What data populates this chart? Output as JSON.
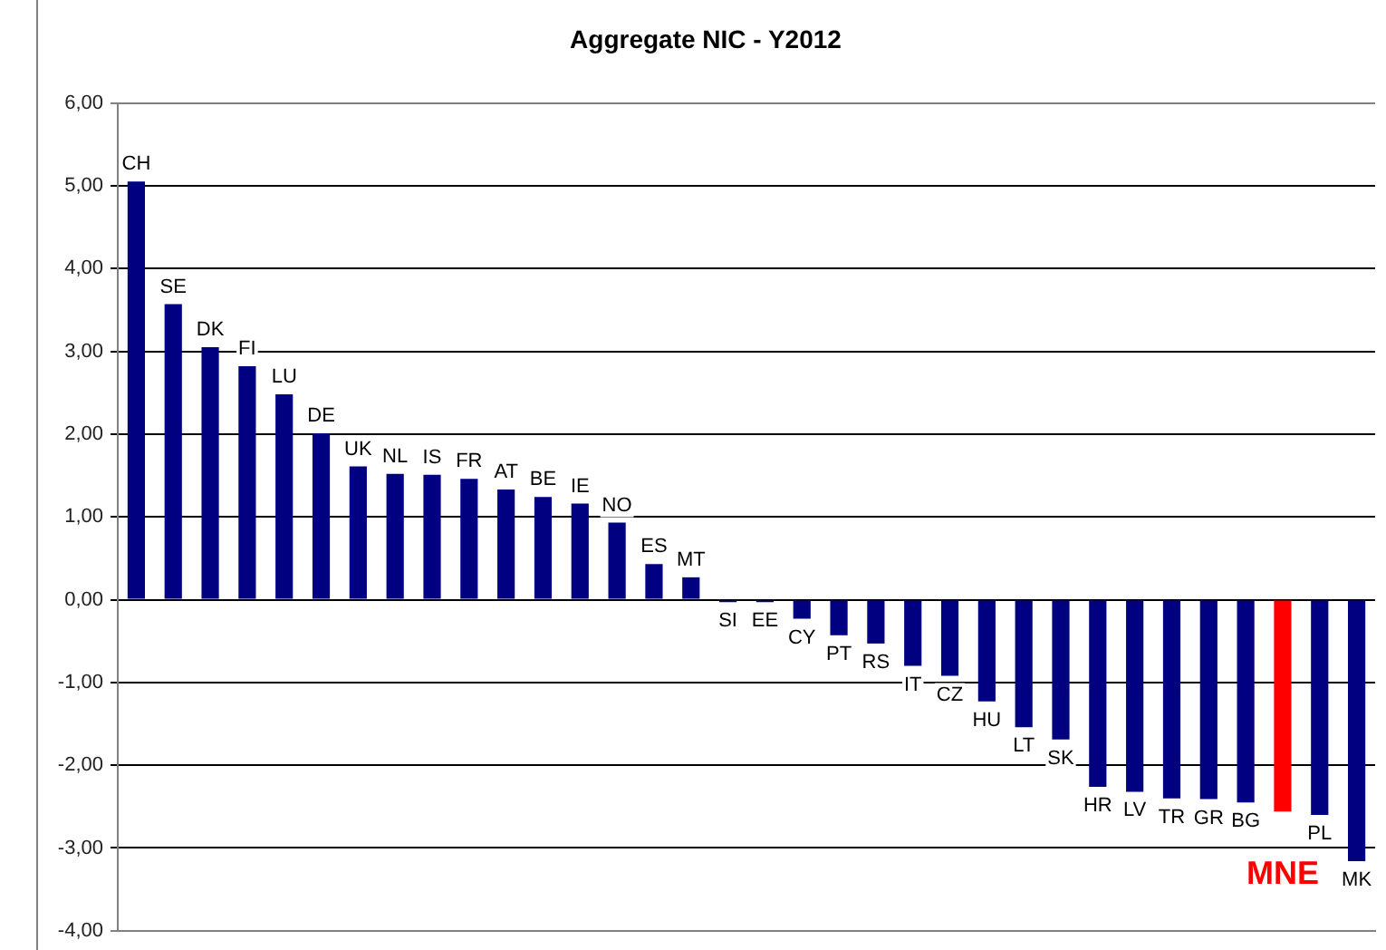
{
  "chart_data": {
    "type": "bar",
    "title": "Aggregate NIC - Y2012",
    "categories": [
      "CH",
      "SE",
      "DK",
      "FI",
      "LU",
      "DE",
      "UK",
      "NL",
      "IS",
      "FR",
      "AT",
      "BE",
      "IE",
      "NO",
      "ES",
      "MT",
      "SI",
      "EE",
      "CY",
      "PT",
      "RS",
      "IT",
      "CZ",
      "HU",
      "LT",
      "SK",
      "HR",
      "LV",
      "TR",
      "GR",
      "BG",
      "MNE",
      "PL",
      "MK"
    ],
    "values": [
      5.05,
      3.57,
      3.05,
      2.82,
      2.48,
      2.01,
      1.61,
      1.52,
      1.51,
      1.46,
      1.33,
      1.24,
      1.16,
      0.93,
      0.43,
      0.27,
      -0.03,
      -0.03,
      -0.23,
      -0.43,
      -0.53,
      -0.8,
      -0.92,
      -1.23,
      -1.54,
      -1.69,
      -2.26,
      -2.32,
      -2.4,
      -2.41,
      -2.45,
      -2.56,
      -2.6,
      -3.16
    ],
    "colors": [
      "#000080",
      "#000080",
      "#000080",
      "#000080",
      "#000080",
      "#000080",
      "#000080",
      "#000080",
      "#000080",
      "#000080",
      "#000080",
      "#000080",
      "#000080",
      "#000080",
      "#000080",
      "#000080",
      "#000080",
      "#000080",
      "#000080",
      "#000080",
      "#000080",
      "#000080",
      "#000080",
      "#000080",
      "#000080",
      "#000080",
      "#000080",
      "#000080",
      "#000080",
      "#000080",
      "#000080",
      "#ff0000",
      "#000080",
      "#000080"
    ],
    "ylim": [
      -4,
      6
    ],
    "yticks": [
      {
        "value": -4,
        "label": "-4,00"
      },
      {
        "value": -3,
        "label": "-3,00"
      },
      {
        "value": -2,
        "label": "-2,00"
      },
      {
        "value": -1,
        "label": "-1,00"
      },
      {
        "value": 0,
        "label": "0,00"
      },
      {
        "value": 1,
        "label": "1,00"
      },
      {
        "value": 2,
        "label": "2,00"
      },
      {
        "value": 3,
        "label": "3,00"
      },
      {
        "value": 4,
        "label": "4,00"
      },
      {
        "value": 5,
        "label": "5,00"
      },
      {
        "value": 6,
        "label": "6,00"
      }
    ],
    "grid": "y"
  }
}
